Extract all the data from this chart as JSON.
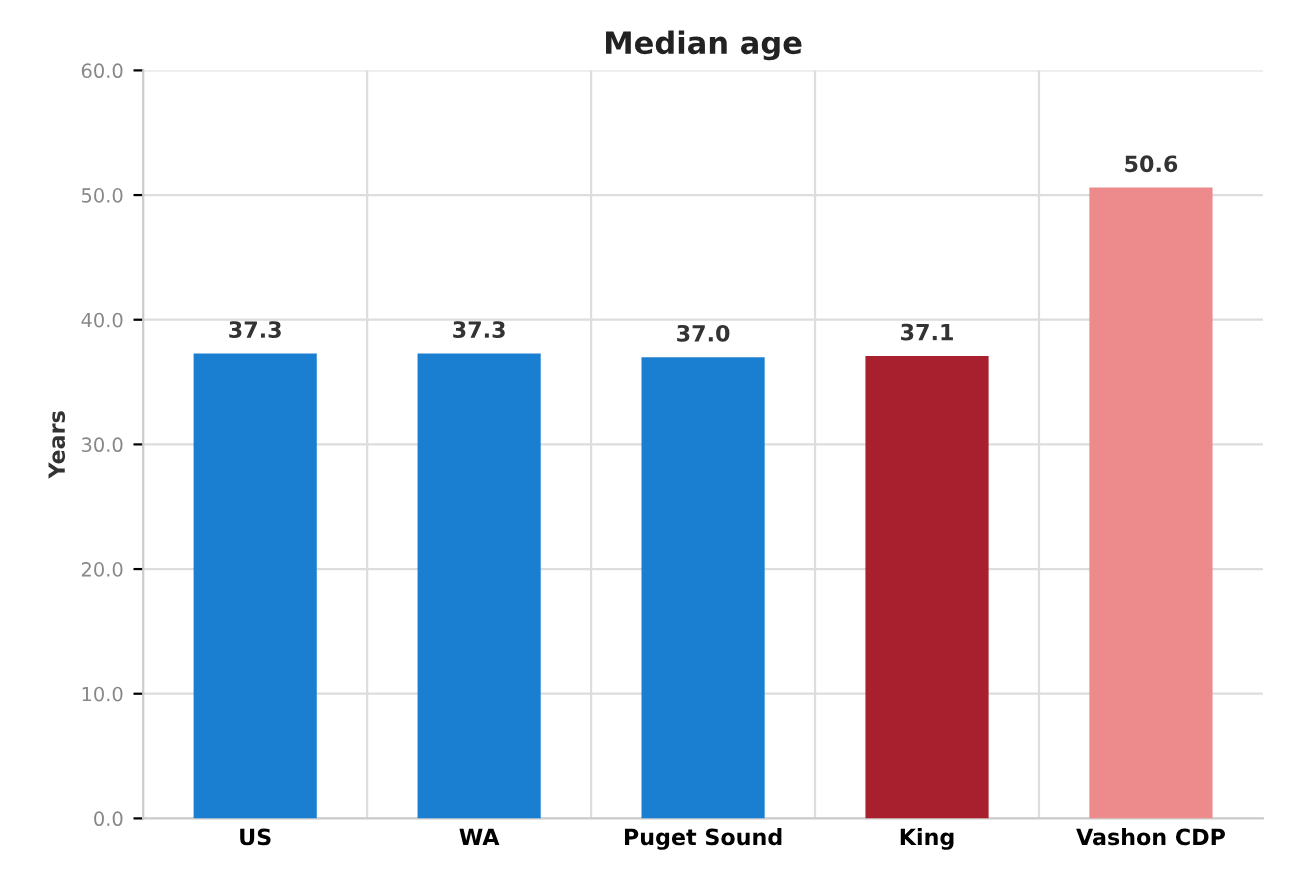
{
  "chart_data": {
    "type": "bar",
    "title": "Median age",
    "ylabel": "Years",
    "categories": [
      "US",
      "WA",
      "Puget Sound",
      "King",
      "Vashon CDP"
    ],
    "values": [
      37.3,
      37.3,
      37.0,
      37.1,
      50.6
    ],
    "colors": [
      "#1a7fd0",
      "#1a7fd0",
      "#1a7fd0",
      "#a8202e",
      "#ec8a8c"
    ],
    "value_labels": [
      "37.3",
      "37.3",
      "37.0",
      "37.1",
      "50.6"
    ],
    "ylim": [
      0,
      60
    ],
    "yticks": [
      {
        "value": 0,
        "label": "0.0"
      },
      {
        "value": 10,
        "label": "10.0"
      },
      {
        "value": 20,
        "label": "20.0"
      },
      {
        "value": 30,
        "label": "30.0"
      },
      {
        "value": 40,
        "label": "40.0"
      },
      {
        "value": 50,
        "label": "50.0"
      },
      {
        "value": 60,
        "label": "60.0"
      }
    ],
    "grid": true
  }
}
